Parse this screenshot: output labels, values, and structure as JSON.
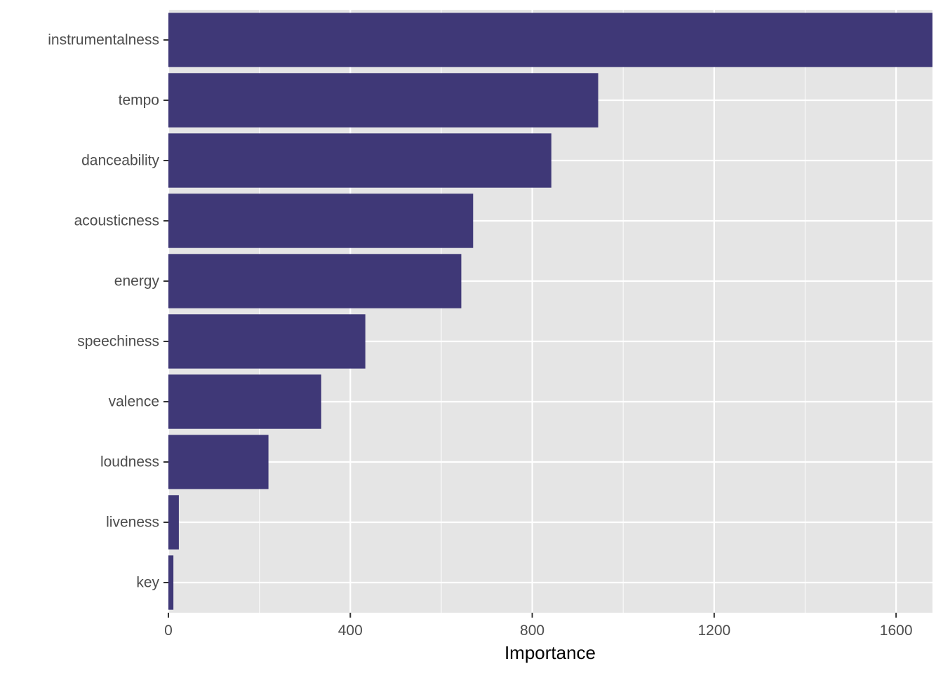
{
  "chart_data": {
    "type": "bar",
    "orientation": "horizontal",
    "categories": [
      "instrumentalness",
      "tempo",
      "danceability",
      "acousticness",
      "energy",
      "speechiness",
      "valence",
      "loudness",
      "liveness",
      "key"
    ],
    "values": [
      1680,
      945,
      842,
      670,
      644,
      433,
      336,
      220,
      23,
      11
    ],
    "xlabel": "Importance",
    "ylabel": "",
    "xlim": [
      0,
      1680
    ],
    "x_ticks": [
      0,
      400,
      800,
      1200,
      1600
    ],
    "x_tick_labels": [
      "0",
      "400",
      "800",
      "1200",
      "1600"
    ],
    "grid": true,
    "colors": {
      "panel_background": "#E5E5E5",
      "grid_major": "#FFFFFF",
      "bar_fill": "#3F3877",
      "text": "#4D4D4D",
      "tick": "#333333"
    }
  }
}
